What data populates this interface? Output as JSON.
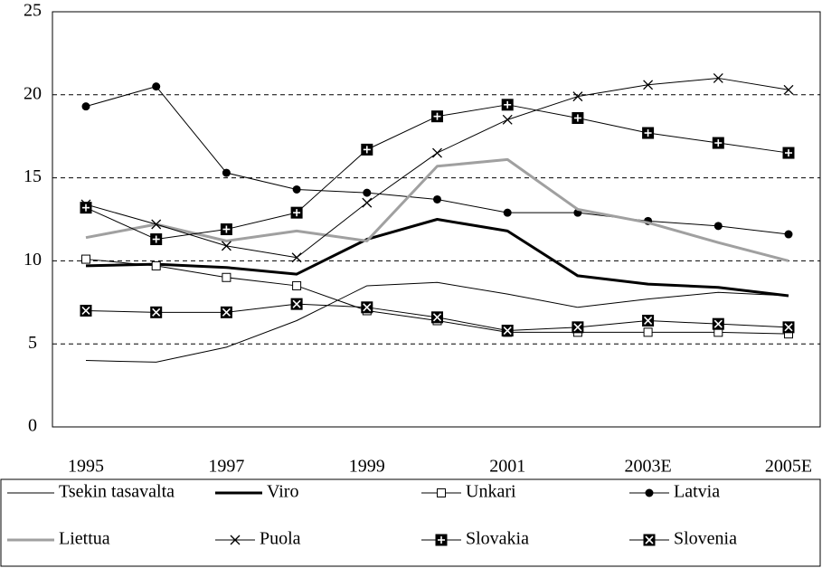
{
  "chart_data": {
    "type": "line",
    "categories": [
      "1995",
      null,
      "1997",
      null,
      "1999",
      null,
      "2001",
      null,
      "2003E",
      null,
      "2005E"
    ],
    "ylim": [
      0,
      25
    ],
    "yticks": [
      0,
      5,
      10,
      15,
      20,
      25
    ],
    "grid": true,
    "legend": "bottom",
    "series": [
      {
        "name": "Tsekin tasavalta",
        "color": "#000000",
        "line_style": "thin",
        "marker": "none",
        "values": [
          4.0,
          3.9,
          4.8,
          6.4,
          8.5,
          8.7,
          8.0,
          7.2,
          7.7,
          8.1,
          7.9
        ]
      },
      {
        "name": "Viro",
        "color": "#000000",
        "line_style": "thick",
        "marker": "none",
        "values": [
          9.7,
          9.8,
          9.6,
          9.2,
          11.3,
          12.5,
          11.8,
          9.1,
          8.6,
          8.4,
          7.9
        ]
      },
      {
        "name": "Unkari",
        "color": "#000000",
        "line_style": "thin",
        "marker": "square-open",
        "values": [
          10.1,
          9.7,
          9.0,
          8.5,
          7.0,
          6.4,
          5.7,
          5.7,
          5.7,
          5.7,
          5.6
        ]
      },
      {
        "name": "Latvia",
        "color": "#000000",
        "line_style": "thin",
        "marker": "circle",
        "values": [
          19.3,
          20.5,
          15.3,
          14.3,
          14.1,
          13.7,
          12.9,
          12.9,
          12.4,
          12.1,
          11.6
        ]
      },
      {
        "name": "Liettua",
        "color": "#a0a0a0",
        "line_style": "thick",
        "marker": "none",
        "values": [
          11.4,
          12.2,
          11.2,
          11.8,
          11.2,
          15.7,
          16.1,
          13.1,
          12.3,
          11.1,
          10.0
        ]
      },
      {
        "name": "Puola",
        "color": "#000000",
        "line_style": "thin",
        "marker": "x",
        "values": [
          13.4,
          12.2,
          10.9,
          10.2,
          13.5,
          16.5,
          18.5,
          19.9,
          20.6,
          21.0,
          20.3
        ]
      },
      {
        "name": "Slovakia",
        "color": "#000000",
        "line_style": "thin",
        "marker": "square-plus",
        "values": [
          13.2,
          11.3,
          11.9,
          12.9,
          16.7,
          18.7,
          19.4,
          18.6,
          17.7,
          17.1,
          16.5
        ]
      },
      {
        "name": "Slovenia",
        "color": "#000000",
        "line_style": "thin",
        "marker": "square-x",
        "values": [
          7.0,
          6.9,
          6.9,
          7.4,
          7.2,
          6.6,
          5.8,
          6.0,
          6.4,
          6.2,
          6.0
        ]
      }
    ]
  }
}
